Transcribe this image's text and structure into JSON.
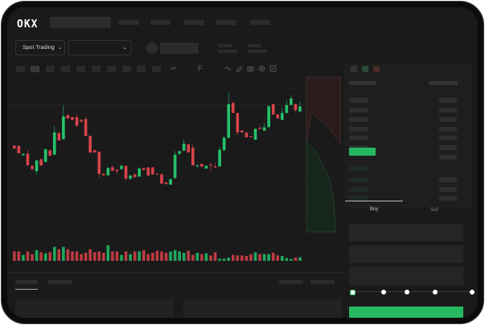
{
  "header": {
    "logo": "OKX",
    "nav_count": 5
  },
  "toolbar": {
    "market_select": "Spot Trading",
    "pair_select": "",
    "chevron": "⌄"
  },
  "orderbook": {
    "icons": [
      "orderbook-both-icon",
      "orderbook-buy-icon",
      "orderbook-sell-icon"
    ]
  },
  "trade": {
    "tabs": [
      {
        "label": "Buy"
      },
      {
        "label": "Sell"
      }
    ],
    "slider_value_percent": 0,
    "submit_color": "#25b860"
  },
  "colors": {
    "up": "#25c26a",
    "down": "#d9434a",
    "background": "#1a1a1a"
  },
  "chart_data": {
    "type": "candlestick",
    "grid": true,
    "candles": [
      [
        185,
        175,
        187,
        173
      ],
      [
        185,
        157,
        186,
        155
      ],
      [
        150,
        155,
        156,
        148
      ],
      [
        155,
        112,
        170,
        110
      ],
      [
        110,
        98,
        112,
        92
      ],
      [
        90,
        130,
        132,
        78
      ],
      [
        135,
        112,
        137,
        108
      ],
      [
        125,
        172,
        175,
        122
      ],
      [
        168,
        148,
        170,
        145
      ],
      [
        152,
        235,
        260,
        150
      ],
      [
        232,
        205,
        238,
        203
      ],
      [
        210,
        295,
        335,
        208
      ],
      [
        300,
        287,
        302,
        285
      ],
      [
        292,
        282,
        295,
        280
      ],
      [
        292,
        260,
        305,
        258
      ],
      [
        282,
        275,
        284,
        273
      ],
      [
        285,
        222,
        292,
        220
      ],
      [
        222,
        160,
        224,
        158
      ],
      [
        168,
        160,
        170,
        158
      ],
      [
        162,
        80,
        166,
        65
      ],
      [
        80,
        75,
        84,
        73
      ],
      [
        75,
        102,
        104,
        70
      ],
      [
        105,
        92,
        112,
        90
      ],
      [
        95,
        90,
        98,
        78
      ],
      [
        98,
        110,
        114,
        96
      ],
      [
        110,
        62,
        112,
        55
      ],
      [
        62,
        74,
        76,
        58
      ],
      [
        78,
        68,
        80,
        66
      ],
      [
        70,
        100,
        104,
        68
      ],
      [
        102,
        95,
        104,
        93
      ],
      [
        104,
        74,
        106,
        72
      ],
      [
        104,
        78,
        106,
        76
      ],
      [
        80,
        78,
        82,
        76
      ],
      [
        78,
        44,
        82,
        42
      ],
      [
        48,
        42,
        50,
        40
      ],
      [
        40,
        60,
        62,
        38
      ],
      [
        65,
        152,
        165,
        60
      ],
      [
        155,
        165,
        167,
        153
      ],
      [
        167,
        193,
        208,
        165
      ],
      [
        190,
        160,
        192,
        158
      ],
      [
        178,
        112,
        190,
        110
      ],
      [
        110,
        112,
        116,
        100
      ],
      [
        117,
        107,
        118,
        105
      ],
      [
        100,
        110,
        112,
        98
      ],
      [
        115,
        113,
        122,
        85
      ],
      [
        108,
        104,
        122,
        102
      ],
      [
        108,
        170,
        180,
        106
      ],
      [
        168,
        215,
        222,
        166
      ],
      [
        215,
        340,
        385,
        213
      ],
      [
        345,
        308,
        350,
        306
      ],
      [
        307,
        235,
        309,
        225
      ],
      [
        242,
        235,
        244,
        233
      ],
      [
        234,
        217,
        236,
        215
      ],
      [
        220,
        218,
        222,
        216
      ],
      [
        208,
        248,
        250,
        206
      ],
      [
        252,
        248,
        262,
        246
      ],
      [
        242,
        254,
        270,
        240
      ],
      [
        255,
        333,
        335,
        253
      ],
      [
        340,
        302,
        342,
        300
      ],
      [
        302,
        288,
        304,
        286
      ],
      [
        282,
        308,
        328,
        280
      ],
      [
        308,
        337,
        355,
        306
      ],
      [
        338,
        362,
        375,
        336
      ],
      [
        340,
        318,
        342,
        308
      ],
      [
        313,
        332,
        350,
        311
      ]
    ],
    "volume": [
      35,
      35,
      22,
      35,
      25,
      40,
      32,
      28,
      32,
      52,
      43,
      52,
      43,
      35,
      35,
      25,
      30,
      43,
      32,
      35,
      30,
      58,
      35,
      35,
      22,
      35,
      25,
      35,
      35,
      40,
      25,
      30,
      38,
      35,
      30,
      35,
      40,
      35,
      30,
      38,
      22,
      30,
      25,
      28,
      20,
      32,
      8,
      8,
      12,
      22,
      20,
      20,
      18,
      25,
      32,
      25,
      25,
      25,
      30,
      20,
      18,
      10,
      7,
      12,
      13
    ]
  }
}
